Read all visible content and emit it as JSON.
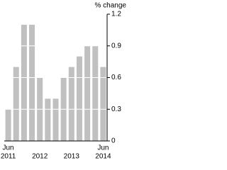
{
  "chart_data": {
    "type": "bar",
    "y_axis_label": "% change",
    "categories": [
      [
        "Jun",
        "2011"
      ],
      null,
      null,
      null,
      [
        "2012"
      ],
      null,
      null,
      null,
      [
        "2013"
      ],
      null,
      null,
      null,
      [
        "Jun",
        "2014"
      ]
    ],
    "values": [
      0.3,
      0.7,
      1.1,
      1.1,
      0.6,
      0.4,
      0.4,
      0.6,
      0.7,
      0.8,
      0.9,
      0.9,
      0.7
    ],
    "color": "#c0c0c0",
    "ylim": [
      0,
      1.2
    ],
    "yticks": [
      0,
      0.3,
      0.6,
      0.9,
      1.2
    ],
    "grid": true,
    "y_axis_side": "right"
  }
}
